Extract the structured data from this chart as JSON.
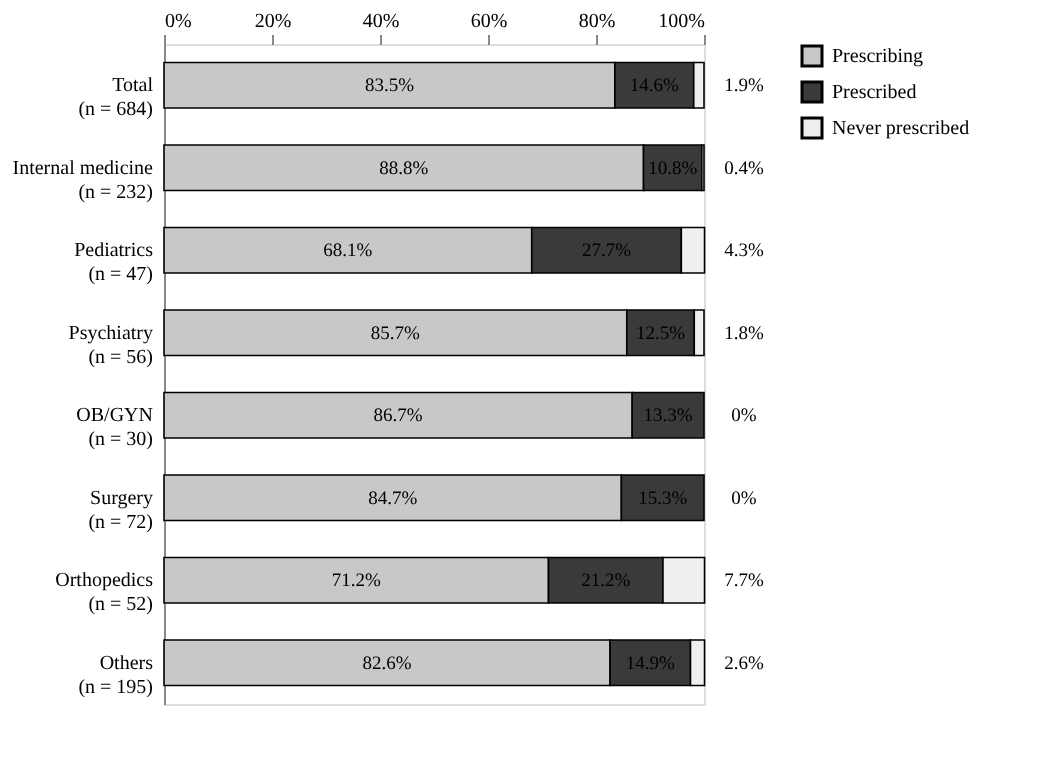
{
  "chart_data": {
    "type": "bar",
    "orientation": "horizontal",
    "stacked": true,
    "categories": [
      "Total\n(n = 684)",
      "Internal medicine\n(n = 232)",
      "Pediatrics\n(n = 47)",
      "Psychiatry\n(n = 56)",
      "OB/GYN\n(n = 30)",
      "Surgery\n(n = 72)",
      "Orthopedics\n(n = 52)",
      "Others\n(n = 195)"
    ],
    "series": [
      {
        "name": "Prescribing",
        "color": "#c8c8c8",
        "values": [
          83.5,
          88.8,
          68.1,
          85.7,
          86.7,
          84.7,
          71.2,
          82.6
        ],
        "value_labels": [
          "83.5%",
          "88.8%",
          "68.1%",
          "85.7%",
          "86.7%",
          "84.7%",
          "71.2%",
          "82.6%"
        ]
      },
      {
        "name": "Prescribed",
        "color": "#3a3a3a",
        "values": [
          14.6,
          10.8,
          27.7,
          12.5,
          13.3,
          15.3,
          21.2,
          14.9
        ],
        "value_labels": [
          "14.6%",
          "10.8%",
          "27.7%",
          "12.5%",
          "13.3%",
          "15.3%",
          "21.2%",
          "14.9%"
        ]
      },
      {
        "name": "Never prescribed",
        "color": "#efefef",
        "values": [
          1.9,
          0.4,
          4.3,
          1.8,
          0,
          0,
          7.7,
          2.6
        ],
        "value_labels": [
          "1.9%",
          "0.4%",
          "4.3%",
          "1.8%",
          "0%",
          "0%",
          "7.7%",
          "2.6%"
        ]
      }
    ],
    "xlim": [
      0,
      100
    ],
    "xticks": [
      {
        "value": 0,
        "label": "0%"
      },
      {
        "value": 20,
        "label": "20%"
      },
      {
        "value": 40,
        "label": "40%"
      },
      {
        "value": 60,
        "label": "60%"
      },
      {
        "value": 80,
        "label": "80%"
      },
      {
        "value": 100,
        "label": "100%"
      }
    ],
    "legend": "right",
    "grid": false
  }
}
